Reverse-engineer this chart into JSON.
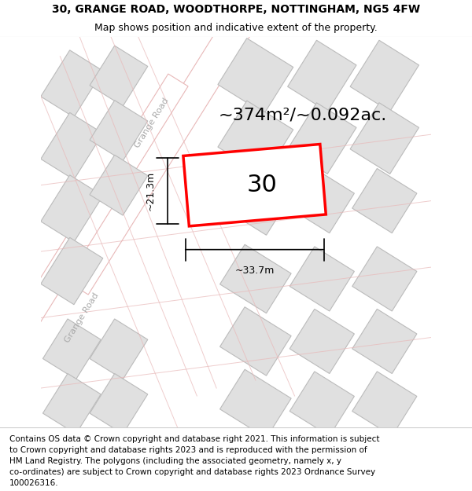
{
  "title_line1": "30, GRANGE ROAD, WOODTHORPE, NOTTINGHAM, NG5 4FW",
  "title_line2": "Map shows position and indicative extent of the property.",
  "footer_text": "Contains OS data © Crown copyright and database right 2021. This information is subject to Crown copyright and database rights 2023 and is reproduced with the permission of HM Land Registry. The polygons (including the associated geometry, namely x, y co-ordinates) are subject to Crown copyright and database rights 2023 Ordnance Survey 100026316.",
  "area_label": "~374m²/~0.092ac.",
  "number_label": "30",
  "dim_width": "~33.7m",
  "dim_height": "~21.3m",
  "road_label_diag": "Grange Road",
  "road_label_left": "Grange Road",
  "bg_color": "#f5f5f5",
  "map_bg": "#f0efef",
  "block_color": "#e0e0e0",
  "block_stroke": "#c8c8c8",
  "road_color": "#ffffff",
  "road_stroke": "#e8b8b8",
  "highlight_color": "#ffffff",
  "highlight_stroke": "#ff0000",
  "dim_line_color": "#000000",
  "title_fontsize": 10,
  "subtitle_fontsize": 9,
  "footer_fontsize": 7.5,
  "label_fontsize": 14,
  "number_fontsize": 22,
  "area_fontsize": 16
}
